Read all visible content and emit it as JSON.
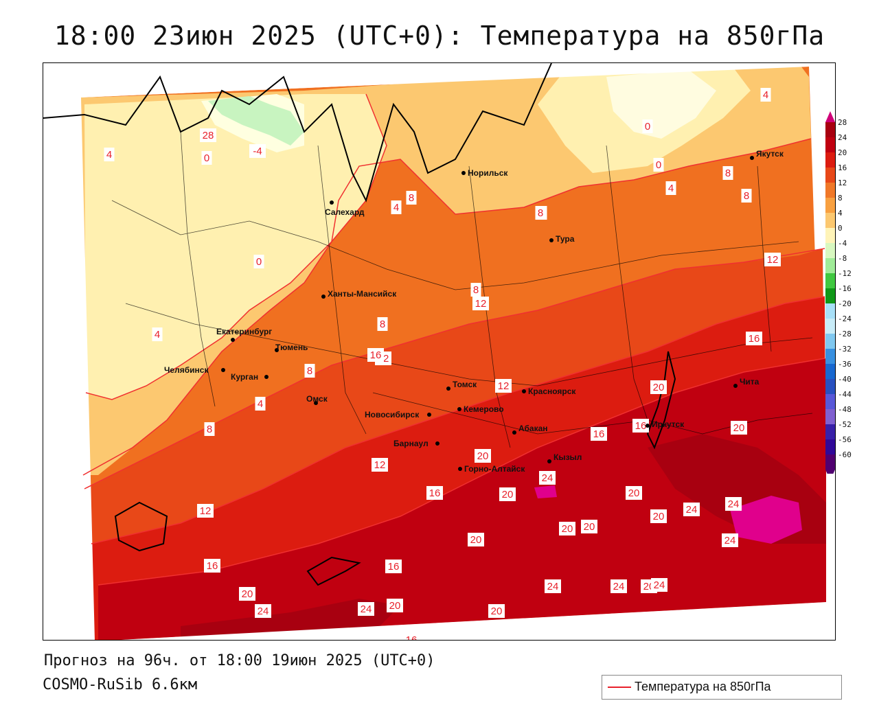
{
  "title": "18:00 23июн 2025 (UTC+0): Температура на 850гПа",
  "footer": {
    "forecast": "Прогноз на 96ч. от 18:00 19июн 2025 (UTC+0)",
    "model": "COSMO-RuSib 6.6км"
  },
  "legend": {
    "label": "Температура на 850гПа",
    "line_color": "#e8202a"
  },
  "colorbar": {
    "ticks": [
      "28",
      "24",
      "20",
      "16",
      "12",
      "8",
      "4",
      "0",
      "-4",
      "-8",
      "-12",
      "-16",
      "-20",
      "-24",
      "-28",
      "-32",
      "-36",
      "-40",
      "-44",
      "-48",
      "-52",
      "-56",
      "-60"
    ],
    "colors": [
      "#d00078",
      "#a80010",
      "#c00010",
      "#dc1c10",
      "#e84818",
      "#f07828",
      "#f8a040",
      "#fcc870",
      "#fff4b8",
      "#d8f8c0",
      "#a0ec98",
      "#40c840",
      "#109818",
      "#a8e0f8",
      "#c8ecf8",
      "#80c8f0",
      "#3890e0",
      "#1868d0",
      "#2850c0",
      "#5858d8",
      "#8060d0",
      "#3820a8",
      "#300898",
      "#500070"
    ]
  },
  "cities": [
    {
      "name": "Норильск"
    },
    {
      "name": "Якутск"
    },
    {
      "name": "Салехард"
    },
    {
      "name": "Тура"
    },
    {
      "name": "Ханты-Мансийск"
    },
    {
      "name": "Екатеринбург"
    },
    {
      "name": "Тюмень"
    },
    {
      "name": "Челябинск"
    },
    {
      "name": "Курган"
    },
    {
      "name": "Омск"
    },
    {
      "name": "Новосибирск"
    },
    {
      "name": "Томск"
    },
    {
      "name": "Красноярск"
    },
    {
      "name": "Кемерово"
    },
    {
      "name": "Абакан"
    },
    {
      "name": "Барнаул"
    },
    {
      "name": "Горно-Алтайск"
    },
    {
      "name": "Кызыл"
    },
    {
      "name": "Иркутск"
    },
    {
      "name": "Чита"
    }
  ],
  "isotherm_labels": [
    "-4",
    "0",
    "4",
    "4",
    "8",
    "8",
    "8",
    "12",
    "12",
    "12",
    "16",
    "16",
    "16",
    "20",
    "20",
    "20",
    "20",
    "24",
    "24",
    "24",
    "28",
    "0",
    "0",
    "4",
    "4",
    "8",
    "8",
    "8",
    "12",
    "16",
    "20",
    "20",
    "20",
    "20",
    "24",
    "24",
    "24",
    "20",
    "16",
    "16",
    "12",
    "8",
    "8",
    "4",
    "4",
    "0",
    "8",
    "12",
    "16",
    "20",
    "24",
    "20",
    "16",
    "20",
    "24",
    "24",
    "20"
  ]
}
